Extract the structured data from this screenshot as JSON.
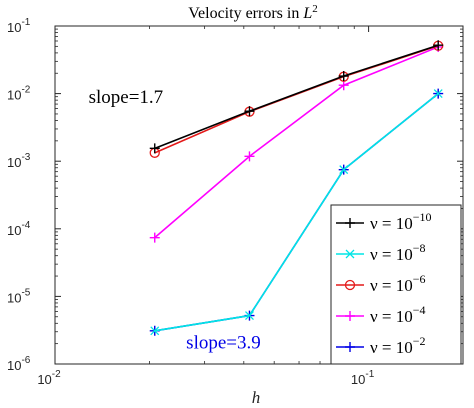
{
  "chart_data": {
    "type": "line",
    "title": "Velocity errors in L²",
    "title_parts": {
      "text": "Velocity errors in ",
      "var": "L",
      "sup": "2"
    },
    "xlabel": "h",
    "ylabel": "",
    "x_scale": "log",
    "y_scale": "log",
    "xlim": [
      0.01,
      0.2
    ],
    "ylim": [
      1e-06,
      0.1
    ],
    "grid": false,
    "legend_position": "bottom-right",
    "x_ticks": [
      {
        "value": 0.01,
        "base": "10",
        "exp": "-2"
      },
      {
        "value": 0.1,
        "base": "10",
        "exp": "-1"
      }
    ],
    "y_ticks": [
      {
        "value": 0.1,
        "base": "10",
        "exp": "-1"
      },
      {
        "value": 0.01,
        "base": "10",
        "exp": "-2"
      },
      {
        "value": 0.001,
        "base": "10",
        "exp": "-3"
      },
      {
        "value": 0.0001,
        "base": "10",
        "exp": "-4"
      },
      {
        "value": 1e-05,
        "base": "10",
        "exp": "-5"
      },
      {
        "value": 1e-06,
        "base": "10",
        "exp": "-6"
      }
    ],
    "x": [
      0.0208,
      0.0417,
      0.0833,
      0.1667
    ],
    "series": [
      {
        "name": "ν = 10^-10",
        "legend_prefix": "ν = 10",
        "legend_exp": "−10",
        "color": "#000000",
        "marker": "plus",
        "values": [
          0.00155,
          0.0055,
          0.0182,
          0.052
        ]
      },
      {
        "name": "ν = 10^-8",
        "legend_prefix": "ν = 10",
        "legend_exp": "−8",
        "color": "#00e5e5",
        "marker": "x",
        "values": [
          3.1e-06,
          5.2e-06,
          0.00075,
          0.01
        ]
      },
      {
        "name": "ν = 10^-6",
        "legend_prefix": "ν = 10",
        "legend_exp": "−6",
        "color": "#e41a1a",
        "marker": "circle",
        "values": [
          0.00133,
          0.0054,
          0.0178,
          0.051
        ]
      },
      {
        "name": "ν = 10^-4",
        "legend_prefix": "ν = 10",
        "legend_exp": "−4",
        "color": "#ff00ff",
        "marker": "plus",
        "values": [
          7.4e-05,
          0.00118,
          0.0133,
          0.049
        ]
      },
      {
        "name": "ν = 10^-2",
        "legend_prefix": "ν = 10",
        "legend_exp": "−2",
        "color": "#0000e6",
        "marker": "plus",
        "values": [
          3.1e-06,
          5.2e-06,
          0.00075,
          0.01
        ]
      }
    ],
    "annotations": [
      {
        "text": "slope=1.7",
        "color": "#000000",
        "x": 0.0128,
        "y": 0.0073
      },
      {
        "text": "slope=3.9",
        "color": "#0000e6",
        "x": 0.0262,
        "y": 1.7e-06
      }
    ]
  }
}
